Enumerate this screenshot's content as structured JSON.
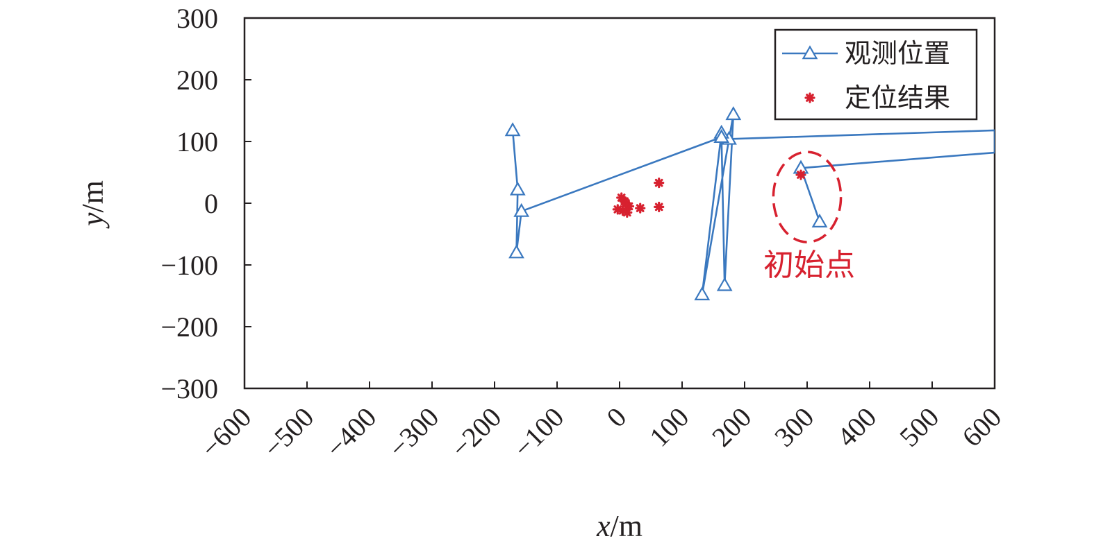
{
  "chart_data": {
    "type": "scatter",
    "xlabel": {
      "var": "x",
      "unit": "/m"
    },
    "ylabel": {
      "var": "y",
      "unit": "/m"
    },
    "xlim": [
      -600,
      600
    ],
    "ylim": [
      -300,
      300
    ],
    "x_ticks": [
      -600,
      -500,
      -400,
      -300,
      -200,
      -100,
      0,
      100,
      200,
      300,
      400,
      500,
      600
    ],
    "y_ticks": [
      300,
      200,
      100,
      0,
      -100,
      -200,
      -300
    ],
    "x_tick_labels": [
      "−600",
      "−500",
      "−400",
      "−300",
      "−200",
      "−100",
      "0",
      "100",
      "200",
      "300",
      "400",
      "500",
      "600"
    ],
    "y_tick_labels": [
      "300",
      "200",
      "100",
      "0",
      "−100",
      "−200",
      "−300"
    ],
    "legend_position": "top-right",
    "series": [
      {
        "name": "观测位置",
        "color": "#3a78bf",
        "marker": "triangle-open",
        "points": [
          [
            320,
            -30
          ],
          [
            290,
            57
          ],
          [
            600,
            82
          ],
          [
            600,
            118
          ],
          [
            175,
            104
          ],
          [
            163,
            114
          ],
          [
            132,
            -148
          ],
          [
            182,
            144
          ],
          [
            168,
            -133
          ],
          [
            163,
            107
          ],
          [
            -157,
            -13
          ],
          [
            -165,
            -80
          ],
          [
            -163,
            22
          ],
          [
            -171,
            118
          ]
        ]
      },
      {
        "name": "定位结果",
        "color": "#d7212f",
        "marker": "asterisk",
        "points": [
          [
            290,
            46
          ],
          [
            63,
            33
          ],
          [
            63,
            -6
          ],
          [
            33,
            -8
          ],
          [
            3,
            9
          ],
          [
            10,
            0
          ],
          [
            15,
            -5
          ],
          [
            -3,
            -10
          ],
          [
            5,
            -12
          ],
          [
            12,
            -15
          ],
          [
            8,
            3
          ]
        ]
      }
    ],
    "annotation": {
      "text": "初始点",
      "color": "#d7212f",
      "circle_center": [
        300,
        10
      ],
      "circle_radii": [
        54,
        73
      ]
    }
  }
}
